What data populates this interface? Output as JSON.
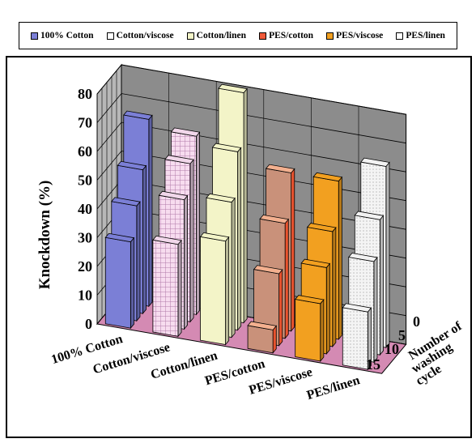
{
  "chart_data": {
    "type": "bar",
    "subtype": "3d-grouped",
    "ylabel": "Knockdown  (%)",
    "depth_axis_label": [
      "Number of",
      "washing",
      "cycle"
    ],
    "ylim": [
      0,
      80
    ],
    "yticks": [
      0,
      10,
      20,
      30,
      40,
      50,
      60,
      70,
      80
    ],
    "categories": [
      "100% Cotton",
      "Cotton/viscose",
      "Cotton/linen",
      "PES/cotton",
      "PES/viscose",
      "PES/linen"
    ],
    "washing_cycles": [
      "0",
      "5",
      "10",
      "15"
    ],
    "series": [
      {
        "name": "100% Cotton",
        "color": "#7b7fd6",
        "values": {
          "0": 65,
          "5": 50,
          "10": 40,
          "15": 30
        }
      },
      {
        "name": "Cotton/viscose",
        "color": "#f1d7ea",
        "values": {
          "0": 62,
          "5": 55,
          "10": 45,
          "15": 32
        }
      },
      {
        "name": "Cotton/linen",
        "color": "#f3f4c8",
        "values": {
          "0": 80,
          "5": 62,
          "10": 47,
          "15": 36
        }
      },
      {
        "name": "PES/cotton",
        "color": "#f05a3a",
        "values": {
          "0": 55,
          "5": 40,
          "10": 25,
          "15": 8
        }
      },
      {
        "name": "PES/viscose",
        "color": "#f2a020",
        "values": {
          "0": 55,
          "5": 40,
          "10": 30,
          "15": 20
        }
      },
      {
        "name": "PES/linen",
        "color": "#f2f2f2",
        "values": {
          "0": 63,
          "5": 47,
          "10": 35,
          "15": 20
        }
      }
    ]
  },
  "legend": [
    {
      "label": "100% Cotton",
      "color": "#7b7fd6"
    },
    {
      "label": "Cotton/viscose",
      "color": "#ffffff"
    },
    {
      "label": "Cotton/linen",
      "color": "#f3f4c8"
    },
    {
      "label": "PES/cotton",
      "color": "#f05a3a"
    },
    {
      "label": "PES/viscose",
      "color": "#f2a020"
    },
    {
      "label": "PES/linen",
      "color": "#ffffff"
    }
  ]
}
